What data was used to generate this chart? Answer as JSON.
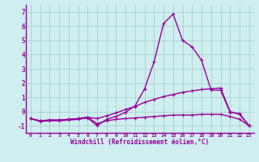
{
  "xlabel": "Windchill (Refroidissement éolien,°C)",
  "bg_color": "#ceeef0",
  "grid_color": "#aacfcc",
  "line_color": "#990099",
  "x": [
    0,
    1,
    2,
    3,
    4,
    5,
    6,
    7,
    8,
    9,
    10,
    11,
    12,
    13,
    14,
    15,
    16,
    17,
    18,
    19,
    20,
    21,
    22,
    23
  ],
  "curve1": [
    -0.5,
    -0.7,
    -0.65,
    -0.65,
    -0.6,
    -0.55,
    -0.45,
    -1.0,
    -0.55,
    -0.35,
    -0.05,
    0.4,
    1.6,
    3.5,
    6.2,
    6.85,
    5.0,
    4.55,
    3.6,
    1.5,
    1.5,
    -0.05,
    -0.15,
    -1.0
  ],
  "curve2": [
    -0.5,
    -0.65,
    -0.6,
    -0.6,
    -0.55,
    -0.5,
    -0.4,
    -0.5,
    -0.3,
    -0.1,
    0.15,
    0.35,
    0.65,
    0.85,
    1.05,
    1.2,
    1.35,
    1.45,
    1.55,
    1.6,
    1.65,
    0.0,
    -0.2,
    -1.0
  ],
  "curve3": [
    -0.5,
    -0.65,
    -0.6,
    -0.6,
    -0.55,
    -0.5,
    -0.4,
    -0.85,
    -0.65,
    -0.55,
    -0.5,
    -0.45,
    -0.4,
    -0.35,
    -0.3,
    -0.25,
    -0.25,
    -0.25,
    -0.2,
    -0.2,
    -0.2,
    -0.35,
    -0.55,
    -1.0
  ],
  "xlim": [
    -0.5,
    23.5
  ],
  "ylim": [
    -1.5,
    7.5
  ],
  "yticks": [
    -1,
    0,
    1,
    2,
    3,
    4,
    5,
    6,
    7
  ],
  "xticks": [
    0,
    1,
    2,
    3,
    4,
    5,
    6,
    7,
    8,
    9,
    10,
    11,
    12,
    13,
    14,
    15,
    16,
    17,
    18,
    19,
    20,
    21,
    22,
    23
  ],
  "linewidth": 1.0,
  "markersize": 3.5
}
